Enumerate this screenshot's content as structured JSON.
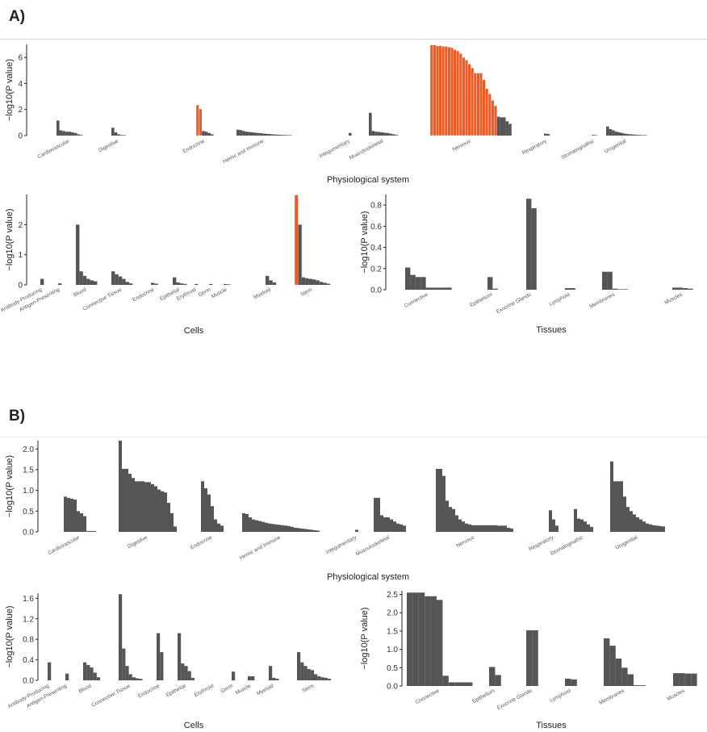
{
  "panels": [
    {
      "label": "A)"
    },
    {
      "label": "B)"
    }
  ],
  "colors": {
    "bar": "#555555",
    "highlight": "#f05a22",
    "divider": "#ffffff"
  },
  "chart_data": [
    {
      "type": "bar",
      "panel": "A",
      "xlabel": "Physiological system",
      "ylabel": "−log10(P value)",
      "ylim": [
        0,
        7
      ],
      "yticks": [
        0,
        2,
        4,
        6
      ],
      "groups": [
        {
          "name": "Cardiovascular",
          "values": [
            1.15,
            0.4,
            0.35,
            0.3,
            0.3,
            0.25,
            0.2,
            0.1,
            0.05
          ]
        },
        {
          "name": "Digestive",
          "values": [
            0.6,
            0.25,
            0.1,
            0.05,
            0.03
          ]
        },
        {
          "name": "Endocrine",
          "values": [
            2.35,
            2.05,
            0.35,
            0.3,
            0.2,
            0.1
          ],
          "highlight": [
            0,
            1
          ]
        },
        {
          "name": "Hemic and Immune",
          "values": [
            0.45,
            0.42,
            0.35,
            0.3,
            0.27,
            0.25,
            0.22,
            0.2,
            0.18,
            0.15,
            0.13,
            0.12,
            0.1,
            0.08,
            0.07,
            0.06,
            0.05,
            0.04,
            0.03
          ]
        },
        {
          "name": "Integumentary",
          "values": [
            0.2
          ]
        },
        {
          "name": "Musculoskeletal",
          "values": [
            1.75,
            0.35,
            0.3,
            0.28,
            0.25,
            0.22,
            0.2,
            0.15,
            0.1,
            0.05
          ]
        },
        {
          "name": "Nervous",
          "values": [
            6.95,
            6.95,
            6.9,
            6.9,
            6.85,
            6.85,
            6.8,
            6.75,
            6.6,
            6.5,
            6.3,
            6.0,
            5.8,
            5.5,
            5.2,
            4.8,
            4.8,
            4.8,
            4.3,
            3.6,
            3.2,
            2.7,
            2.3,
            1.45,
            1.4,
            1.4,
            1.1,
            0.9
          ],
          "highlight": [
            0,
            1,
            2,
            3,
            4,
            5,
            6,
            7,
            8,
            9,
            10,
            11,
            12,
            13,
            14,
            15,
            16,
            17,
            18,
            19,
            20,
            21,
            22
          ]
        },
        {
          "name": "Respiratory",
          "values": [
            0.15,
            0.12
          ]
        },
        {
          "name": "Stomatognathic",
          "values": [
            0.05,
            0.03
          ]
        },
        {
          "name": "Urogenital",
          "values": [
            0.7,
            0.5,
            0.4,
            0.3,
            0.25,
            0.2,
            0.15,
            0.12,
            0.1,
            0.08,
            0.06,
            0.05,
            0.04,
            0.03
          ]
        }
      ]
    },
    {
      "type": "bar",
      "panel": "A",
      "xlabel": "Cells",
      "ylabel": "−log10(P value)",
      "ylim": [
        0,
        3
      ],
      "yticks": [
        0,
        1,
        2
      ],
      "groups": [
        {
          "name": "Antibody-Producing",
          "values": [
            0.2
          ]
        },
        {
          "name": "Antigen-Presenting",
          "values": [
            0.05
          ]
        },
        {
          "name": "Blood",
          "values": [
            2.0,
            0.45,
            0.3,
            0.2,
            0.15,
            0.12
          ]
        },
        {
          "name": "Connective Tissue",
          "values": [
            0.45,
            0.35,
            0.28,
            0.2,
            0.1,
            0.05
          ]
        },
        {
          "name": "Endocrine",
          "values": [
            0.07,
            0.04
          ]
        },
        {
          "name": "Epithelial",
          "values": [
            0.25,
            0.08,
            0.05,
            0.03
          ]
        },
        {
          "name": "Erythroid",
          "values": [
            0.03
          ]
        },
        {
          "name": "Germ",
          "values": [
            0.03
          ]
        },
        {
          "name": "Muscle",
          "values": [
            0.03,
            0.02
          ]
        },
        {
          "name": "Myeloid",
          "values": [
            0.3,
            0.15,
            0.08
          ]
        },
        {
          "name": "Stem",
          "values": [
            2.98,
            2.0,
            0.25,
            0.22,
            0.2,
            0.18,
            0.15,
            0.1,
            0.07,
            0.04
          ],
          "highlight": [
            0
          ]
        }
      ]
    },
    {
      "type": "bar",
      "panel": "A",
      "xlabel": "Tissues",
      "ylabel": "−log10(P value)",
      "ylim": [
        0,
        0.9
      ],
      "yticks": [
        0.0,
        0.2,
        0.4,
        0.6,
        0.8
      ],
      "groups": [
        {
          "name": "Connective",
          "values": [
            0.21,
            0.14,
            0.12,
            0.12,
            0.02,
            0.02,
            0.02,
            0.02,
            0.02
          ]
        },
        {
          "name": "Epithelium",
          "values": [
            0.12,
            0.01
          ]
        },
        {
          "name": "Exocrine Glands",
          "values": [
            0.86,
            0.77
          ]
        },
        {
          "name": "Lymphoid",
          "values": [
            0.015,
            0.015
          ]
        },
        {
          "name": "Membranes",
          "values": [
            0.17,
            0.17,
            0.01,
            0.005,
            0.005
          ]
        },
        {
          "name": "Muscles",
          "values": [
            0.02,
            0.02,
            0.015,
            0.01
          ]
        }
      ]
    },
    {
      "type": "bar",
      "panel": "B",
      "xlabel": "Physiological system",
      "ylabel": "−log10(P value)",
      "ylim": [
        0,
        2.2
      ],
      "yticks": [
        0.0,
        0.5,
        1.0,
        1.5,
        2.0
      ],
      "groups": [
        {
          "name": "Cardiovascular",
          "values": [
            0.85,
            0.82,
            0.8,
            0.78,
            0.5,
            0.45,
            0.38,
            0.02,
            0.02,
            0.02
          ]
        },
        {
          "name": "Digestive",
          "values": [
            2.2,
            1.52,
            1.52,
            1.4,
            1.3,
            1.22,
            1.22,
            1.22,
            1.2,
            1.2,
            1.15,
            1.1,
            1.02,
            0.98,
            0.95,
            0.7,
            0.45,
            0.13
          ]
        },
        {
          "name": "Endocrine",
          "values": [
            1.22,
            1.05,
            0.9,
            0.62,
            0.3,
            0.2,
            0.15
          ]
        },
        {
          "name": "Hemic and Immune",
          "values": [
            0.45,
            0.43,
            0.35,
            0.3,
            0.28,
            0.26,
            0.24,
            0.22,
            0.2,
            0.19,
            0.18,
            0.17,
            0.16,
            0.15,
            0.14,
            0.12,
            0.1,
            0.09,
            0.08,
            0.07,
            0.06,
            0.05,
            0.04,
            0.03
          ]
        },
        {
          "name": "Integumentary",
          "values": [
            0.05
          ]
        },
        {
          "name": "Musculoskeletal",
          "values": [
            0.82,
            0.82,
            0.4,
            0.35,
            0.35,
            0.3,
            0.25,
            0.2,
            0.18,
            0.15
          ]
        },
        {
          "name": "Nervous",
          "values": [
            1.52,
            1.52,
            1.35,
            0.75,
            0.6,
            0.55,
            0.4,
            0.3,
            0.25,
            0.2,
            0.18,
            0.16,
            0.16,
            0.16,
            0.16,
            0.16,
            0.16,
            0.16,
            0.16,
            0.15,
            0.15,
            0.15,
            0.1,
            0.08
          ]
        },
        {
          "name": "Respiratory",
          "values": [
            0.52,
            0.3,
            0.15
          ]
        },
        {
          "name": "Stomatognathic",
          "values": [
            0.55,
            0.32,
            0.3,
            0.25,
            0.18,
            0.12
          ]
        },
        {
          "name": "Urogenital",
          "values": [
            1.7,
            1.22,
            1.22,
            1.22,
            0.85,
            0.6,
            0.5,
            0.42,
            0.35,
            0.3,
            0.25,
            0.2,
            0.18,
            0.16,
            0.15,
            0.14,
            0.13
          ]
        }
      ]
    },
    {
      "type": "bar",
      "panel": "B",
      "xlabel": "Cells",
      "ylabel": "−log10(P value)",
      "ylim": [
        0,
        1.7
      ],
      "yticks": [
        0.0,
        0.4,
        0.8,
        1.2,
        1.6
      ],
      "groups": [
        {
          "name": "Antibody-Producing",
          "values": [
            0.35
          ]
        },
        {
          "name": "Antigen-Presenting",
          "values": [
            0.13
          ]
        },
        {
          "name": "Blood",
          "values": [
            0.35,
            0.3,
            0.25,
            0.15,
            0.06
          ]
        },
        {
          "name": "Connective Tissue",
          "values": [
            1.68,
            0.62,
            0.28,
            0.12,
            0.06,
            0.04,
            0.03
          ]
        },
        {
          "name": "Endocrine",
          "values": [
            0.92,
            0.55
          ]
        },
        {
          "name": "Epithelial",
          "values": [
            0.92,
            0.33,
            0.28,
            0.18,
            0.05
          ]
        },
        {
          "name": "Erythroid",
          "values": []
        },
        {
          "name": "Germ",
          "values": [
            0.17
          ]
        },
        {
          "name": "Muscle",
          "values": [
            0.08,
            0.08
          ]
        },
        {
          "name": "Myeloid",
          "values": [
            0.28,
            0.05,
            0.03
          ]
        },
        {
          "name": "Stem",
          "values": [
            0.55,
            0.35,
            0.28,
            0.22,
            0.2,
            0.12,
            0.08,
            0.06,
            0.05,
            0.03
          ]
        }
      ]
    },
    {
      "type": "bar",
      "panel": "B",
      "xlabel": "Tissues",
      "ylabel": "−log10(P value)",
      "ylim": [
        0,
        2.6
      ],
      "yticks": [
        0.0,
        0.5,
        1.0,
        1.5,
        2.0,
        2.5
      ],
      "groups": [
        {
          "name": "Connective",
          "values": [
            2.55,
            2.55,
            2.55,
            2.45,
            2.45,
            2.35,
            0.28,
            0.1,
            0.1,
            0.1,
            0.1
          ]
        },
        {
          "name": "Epithelium",
          "values": [
            0.52,
            0.3
          ]
        },
        {
          "name": "Exocrine Glands",
          "values": [
            1.52,
            1.52
          ]
        },
        {
          "name": "Lymphoid",
          "values": [
            0.2,
            0.18
          ]
        },
        {
          "name": "Membranes",
          "values": [
            1.3,
            1.1,
            0.75,
            0.5,
            0.32,
            0.02,
            0.02
          ]
        },
        {
          "name": "Muscles",
          "values": [
            0.35,
            0.35,
            0.34,
            0.34
          ]
        }
      ]
    }
  ]
}
